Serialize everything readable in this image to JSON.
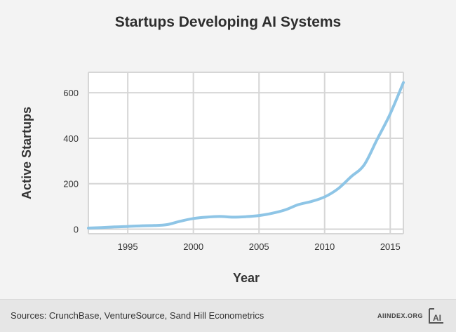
{
  "chart_data": {
    "type": "line",
    "title": "Startups Developing AI Systems",
    "xlabel": "Year",
    "ylabel": "Active Startups",
    "xlim": [
      1992,
      2016
    ],
    "ylim": [
      -20,
      690
    ],
    "xticks": [
      "1995",
      "2000",
      "2005",
      "2010",
      "2015"
    ],
    "yticks": [
      "0",
      "200",
      "400",
      "600"
    ],
    "grid": true,
    "legend": "none",
    "line_color": "#8ec5e6",
    "series": [
      {
        "x": [
          1992,
          1993,
          1994,
          1995,
          1996,
          1997,
          1998,
          1999,
          2000,
          2001,
          2002,
          2003,
          2004,
          2005,
          2006,
          2007,
          2008,
          2009,
          2010,
          2011,
          2012,
          2013,
          2014,
          2015,
          2016
        ],
        "values": [
          5,
          7,
          10,
          12,
          15,
          16,
          20,
          35,
          47,
          53,
          56,
          53,
          55,
          60,
          70,
          85,
          108,
          122,
          142,
          177,
          230,
          282,
          395,
          508,
          645
        ]
      }
    ]
  },
  "footer": {
    "sources": "Sources: CrunchBase, VentureSource, Sand Hill Econometrics",
    "site": "AIINDEX.ORG",
    "logo_text": "AI"
  }
}
